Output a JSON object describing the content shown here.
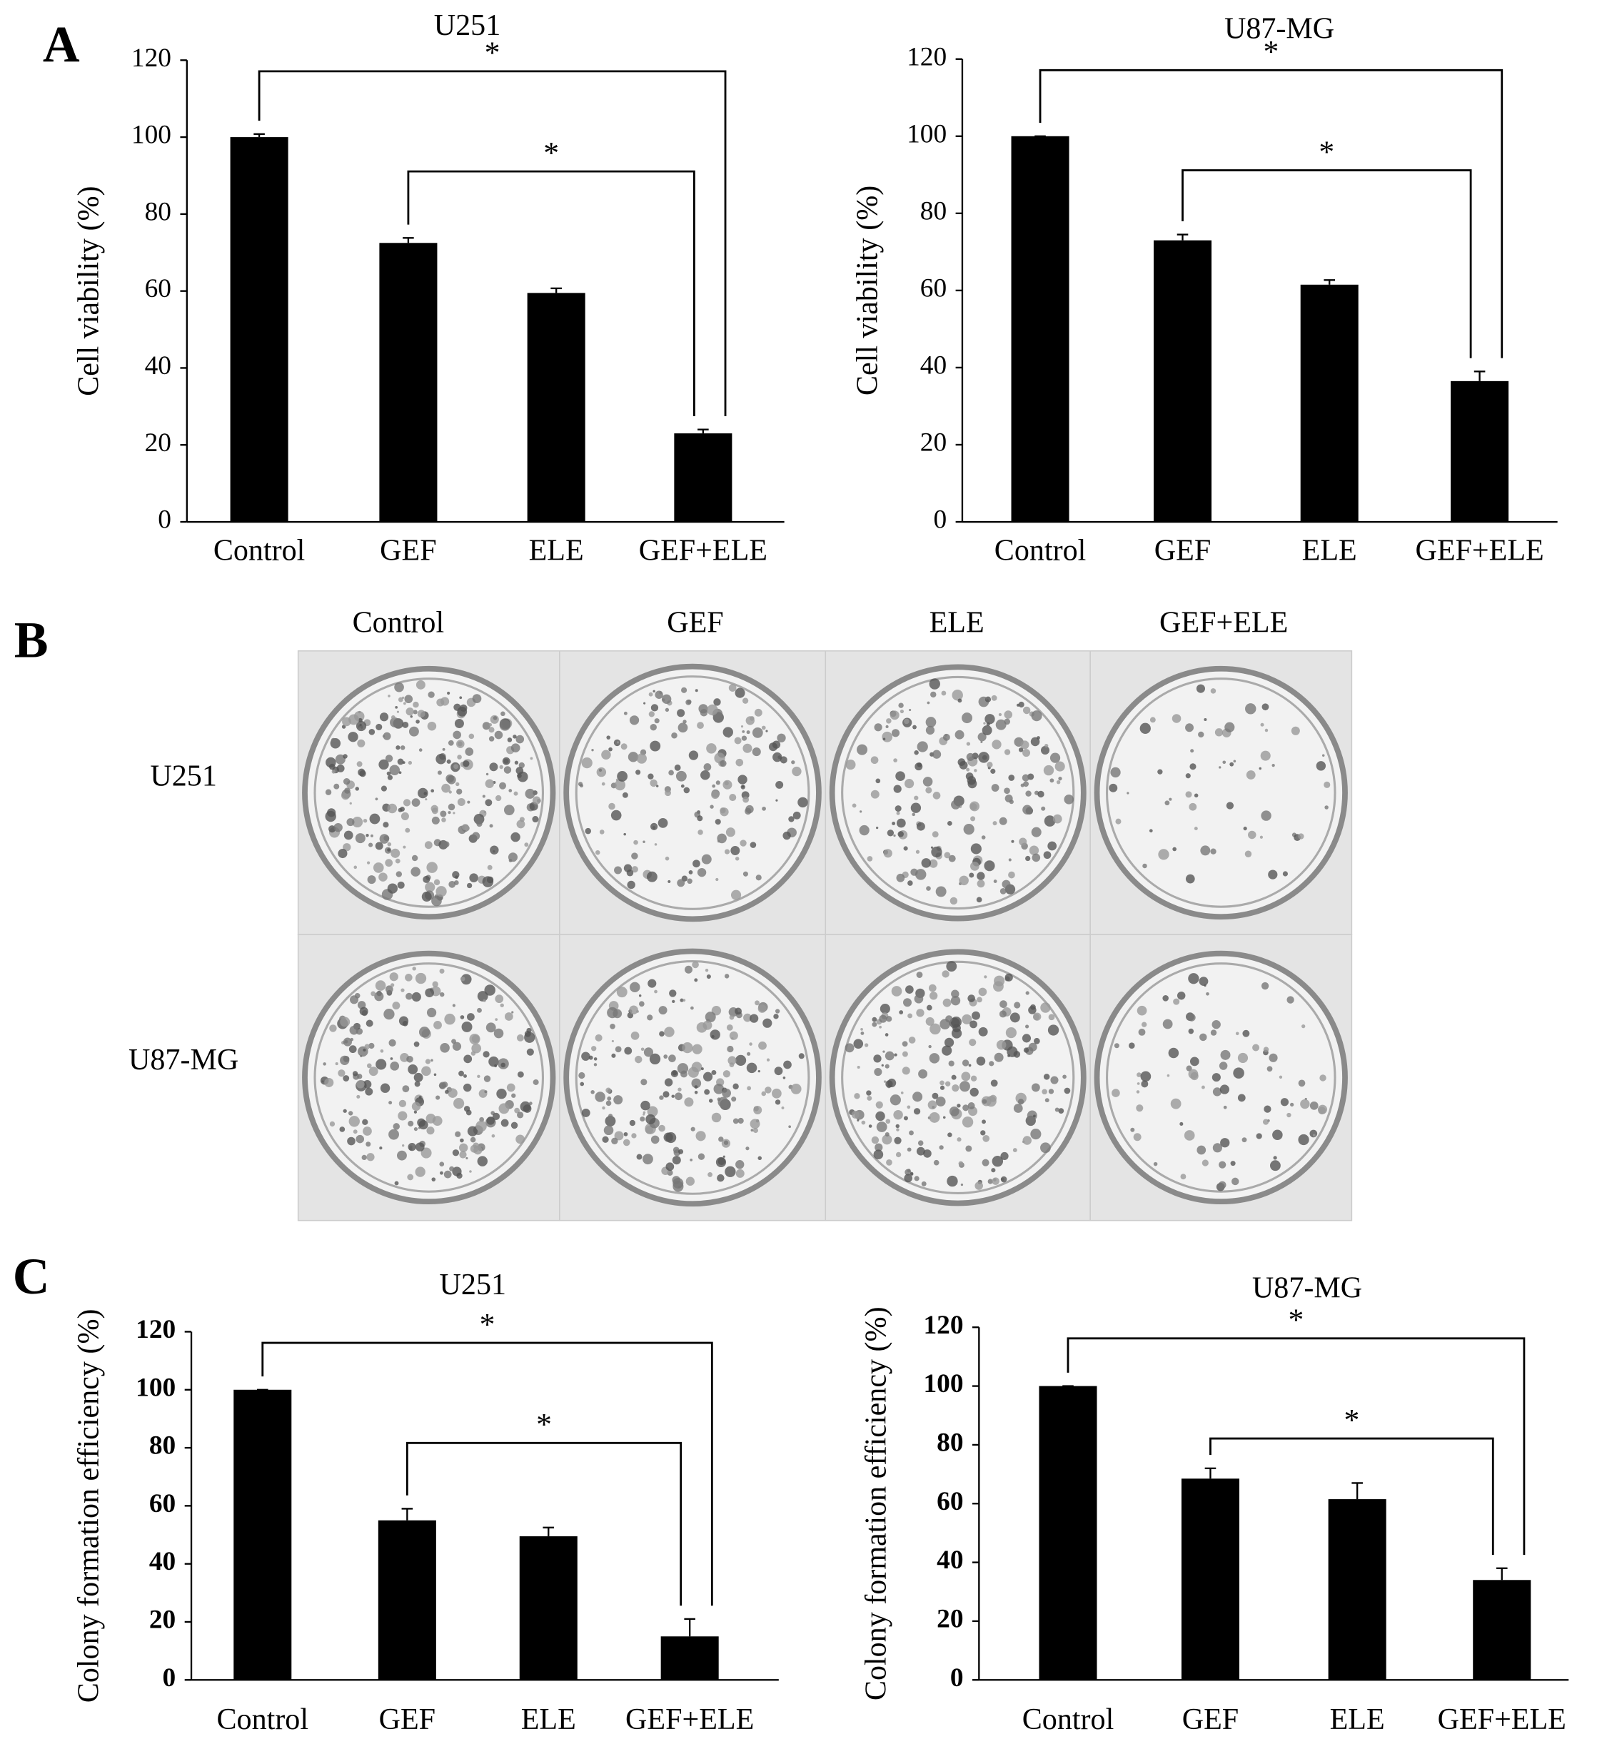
{
  "panel_labels": [
    "A",
    "B",
    "C"
  ],
  "chart_data": [
    {
      "type": "bar",
      "title": "U251",
      "y_label": "Cell viability (%)",
      "categories": [
        "Control",
        "GEF",
        "ELE",
        "GEF+ELE"
      ],
      "values": [
        100,
        72.5,
        59.5,
        23
      ],
      "errors": [
        0.8,
        1.3,
        1.2,
        1
      ],
      "color": "#000000",
      "ylim": [
        0,
        120
      ],
      "yticks": [
        0,
        20,
        40,
        60,
        80,
        100,
        120
      ],
      "brackets": [
        {
          "text": "*",
          "between": [
            0,
            3
          ]
        },
        {
          "text": "*",
          "between": [
            1,
            3
          ]
        }
      ]
    },
    {
      "type": "bar",
      "title": "U87-MG",
      "y_label": "Cell viability (%)",
      "categories": [
        "Control",
        "GEF",
        "ELE",
        "GEF+ELE"
      ],
      "values": [
        100,
        73,
        61.5,
        36.5
      ],
      "errors": [
        0,
        1.5,
        1.2,
        2.5
      ],
      "color": "#000000",
      "ylim": [
        0,
        120
      ],
      "yticks": [
        0,
        20,
        40,
        60,
        80,
        100,
        120
      ],
      "brackets": [
        {
          "text": "*",
          "between": [
            0,
            3
          ]
        },
        {
          "text": "*",
          "between": [
            1,
            3
          ]
        }
      ]
    },
    {
      "type": "bar",
      "title": "U251",
      "y_label": "Colony formation efficiency (%)",
      "categories": [
        "Control",
        "GEF",
        "ELE",
        "GEF+ELE"
      ],
      "values": [
        100,
        55,
        49.5,
        15
      ],
      "errors": [
        0,
        4,
        3,
        6
      ],
      "color": "#000000",
      "ylim": [
        0,
        120
      ],
      "yticks": [
        0,
        20,
        40,
        60,
        80,
        100,
        120
      ],
      "brackets": [
        {
          "text": "*",
          "between": [
            0,
            3
          ]
        },
        {
          "text": "*",
          "between": [
            1,
            3
          ]
        }
      ]
    },
    {
      "type": "bar",
      "title": "U87-MG",
      "y_label": "Colony formation efficiency (%)",
      "categories": [
        "Control",
        "GEF",
        "ELE",
        "GEF+ELE"
      ],
      "values": [
        100,
        68.5,
        61.5,
        34
      ],
      "errors": [
        0,
        3.5,
        5.5,
        4
      ],
      "color": "#000000",
      "ylim": [
        0,
        120
      ],
      "yticks": [
        0,
        20,
        40,
        60,
        80,
        100,
        120
      ],
      "brackets": [
        {
          "text": "*",
          "between": [
            0,
            3
          ]
        },
        {
          "text": "*",
          "between": [
            1,
            3
          ]
        }
      ]
    }
  ],
  "colony_images": {
    "columns": [
      "Control",
      "GEF",
      "ELE",
      "GEF+ELE"
    ],
    "rows": [
      "U251",
      "U87-MG"
    ]
  }
}
